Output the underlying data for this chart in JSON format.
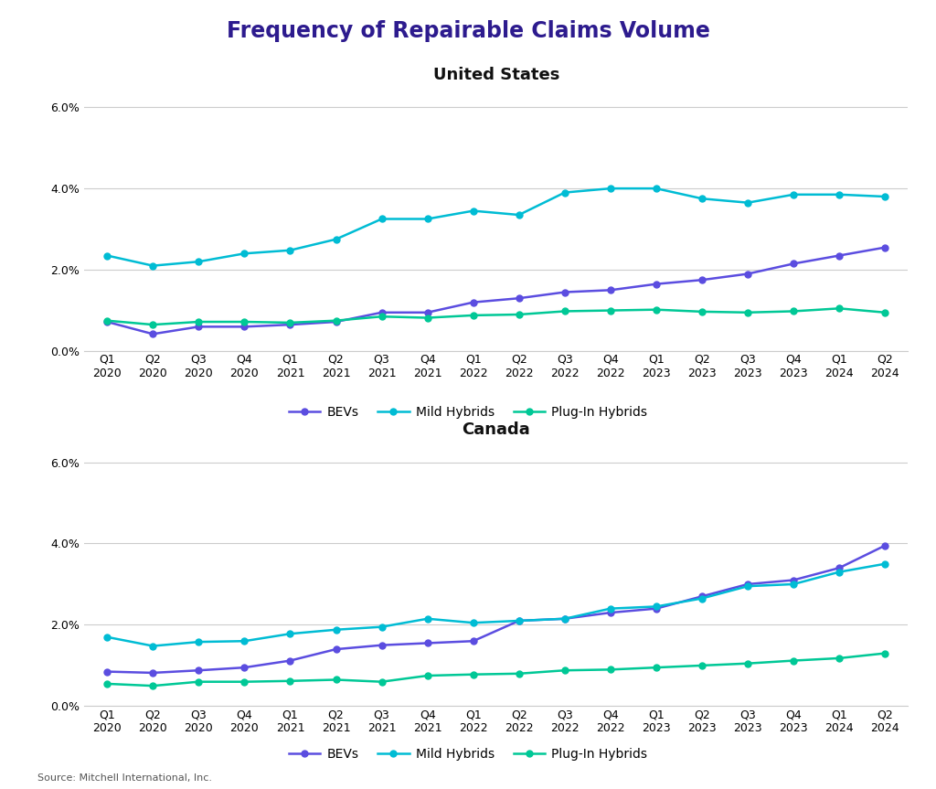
{
  "title": "Frequency of Repairable Claims Volume",
  "title_color": "#2d1b8e",
  "subtitle_us": "United States",
  "subtitle_ca": "Canada",
  "source": "Source: Mitchell International, Inc.",
  "quarters": [
    "Q1\n2020",
    "Q2\n2020",
    "Q3\n2020",
    "Q4\n2020",
    "Q1\n2021",
    "Q2\n2021",
    "Q3\n2021",
    "Q4\n2021",
    "Q1\n2022",
    "Q2\n2022",
    "Q3\n2022",
    "Q4\n2022",
    "Q1\n2023",
    "Q2\n2023",
    "Q3\n2023",
    "Q4\n2023",
    "Q1\n2024",
    "Q2\n2024"
  ],
  "us": {
    "bevs": [
      0.0072,
      0.0042,
      0.006,
      0.006,
      0.0065,
      0.0072,
      0.0095,
      0.0095,
      0.012,
      0.013,
      0.0145,
      0.015,
      0.0165,
      0.0175,
      0.019,
      0.0215,
      0.0235,
      0.0255
    ],
    "mild_hybrids": [
      0.0235,
      0.021,
      0.022,
      0.024,
      0.0248,
      0.0275,
      0.0325,
      0.0325,
      0.0345,
      0.0335,
      0.039,
      0.04,
      0.04,
      0.0375,
      0.0365,
      0.0385,
      0.0385,
      0.038
    ],
    "plug_hybrids": [
      0.0075,
      0.0065,
      0.0072,
      0.0072,
      0.007,
      0.0075,
      0.0085,
      0.0082,
      0.0088,
      0.009,
      0.0098,
      0.01,
      0.0102,
      0.0097,
      0.0095,
      0.0098,
      0.0105,
      0.0095
    ]
  },
  "ca": {
    "bevs": [
      0.0085,
      0.0082,
      0.0088,
      0.0095,
      0.0112,
      0.014,
      0.015,
      0.0155,
      0.016,
      0.021,
      0.0215,
      0.023,
      0.024,
      0.027,
      0.03,
      0.031,
      0.034,
      0.0395
    ],
    "mild_hybrids": [
      0.017,
      0.0148,
      0.0158,
      0.016,
      0.0178,
      0.0188,
      0.0195,
      0.0215,
      0.0205,
      0.021,
      0.0215,
      0.024,
      0.0245,
      0.0265,
      0.0295,
      0.03,
      0.033,
      0.035
    ],
    "plug_hybrids": [
      0.0055,
      0.005,
      0.006,
      0.006,
      0.0062,
      0.0065,
      0.006,
      0.0075,
      0.0078,
      0.008,
      0.0088,
      0.009,
      0.0095,
      0.01,
      0.0105,
      0.0112,
      0.0118,
      0.013
    ]
  },
  "color_bevs": "#5b4de0",
  "color_mild": "#00bcd4",
  "color_plug": "#00c896",
  "ylim": [
    0.0,
    0.065
  ],
  "yticks": [
    0.0,
    0.02,
    0.04,
    0.06
  ],
  "ytick_labels": [
    "0.0%",
    "2.0%",
    "4.0%",
    "6.0%"
  ],
  "legend_labels": [
    "BEVs",
    "Mild Hybrids",
    "Plug-In Hybrids"
  ],
  "bg_color": "#ffffff",
  "grid_color": "#cccccc",
  "subtitle_fontsize": 13,
  "title_fontsize": 17,
  "tick_fontsize": 9,
  "legend_fontsize": 10,
  "source_fontsize": 8
}
